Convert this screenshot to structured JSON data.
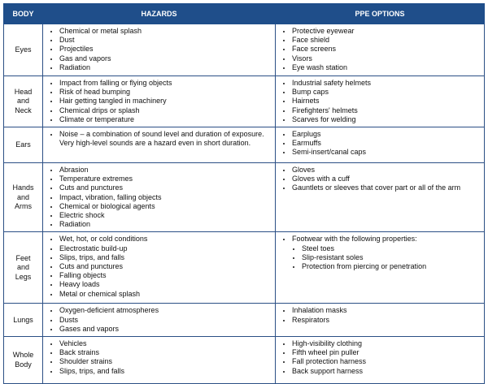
{
  "table": {
    "header": [
      "BODY",
      "HAZARDS",
      "PPE OPTIONS"
    ],
    "rows": [
      {
        "body": "Eyes",
        "hazards": [
          "Chemical or metal splash",
          "Dust",
          "Projectiles",
          "Gas and vapors",
          "Radiation"
        ],
        "ppe": [
          "Protective eyewear",
          "Face shield",
          "Face screens",
          "Visors",
          "Eye wash station"
        ]
      },
      {
        "body": "Head and Neck",
        "hazards": [
          "Impact from falling or flying objects",
          "Risk of head bumping",
          "Hair getting tangled in machinery",
          "Chemical drips or splash",
          "Climate or temperature"
        ],
        "ppe": [
          "Industrial safety helmets",
          "Bump caps",
          "Hairnets",
          "Firefighters' helmets",
          "Scarves for welding"
        ]
      },
      {
        "body": "Ears",
        "hazards": [
          "Noise – a combination of sound level and duration of exposure. Very high-level sounds are a hazard even in short duration."
        ],
        "ppe": [
          "Earplugs",
          "Earmuffs",
          "Semi-insert/canal caps"
        ]
      },
      {
        "body": "Hands and Arms",
        "hazards": [
          "Abrasion",
          "Temperature extremes",
          "Cuts and punctures",
          "Impact, vibration, falling objects",
          "Chemical or biological agents",
          "Electric shock",
          "Radiation"
        ],
        "ppe": [
          "Gloves",
          "Gloves with a cuff",
          "Gauntlets or sleeves that cover part or all of the arm"
        ]
      },
      {
        "body": "Feet and Legs",
        "hazards": [
          "Wet, hot, or cold conditions",
          "Electrostatic build-up",
          "Slips, trips, and falls",
          "Cuts and punctures",
          "Falling objects",
          "Heavy loads",
          "Metal or chemical splash"
        ],
        "ppe": [
          "Footwear with the following properties:"
        ],
        "ppe_sub": [
          "Steel toes",
          "Slip-resistant soles",
          "Protection from piercing or penetration"
        ]
      },
      {
        "body": "Lungs",
        "hazards": [
          "Oxygen-deficient atmospheres",
          "Dusts",
          "Gases and vapors"
        ],
        "ppe": [
          "Inhalation masks",
          "Respirators"
        ]
      },
      {
        "body": "Whole Body",
        "hazards": [
          "Vehicles",
          "Back strains",
          "Shoulder strains",
          "Slips, trips, and falls"
        ],
        "ppe": [
          "High-visibility clothing",
          "Fifth wheel pin puller",
          "Fall protection harness",
          "Back support harness"
        ]
      }
    ]
  }
}
